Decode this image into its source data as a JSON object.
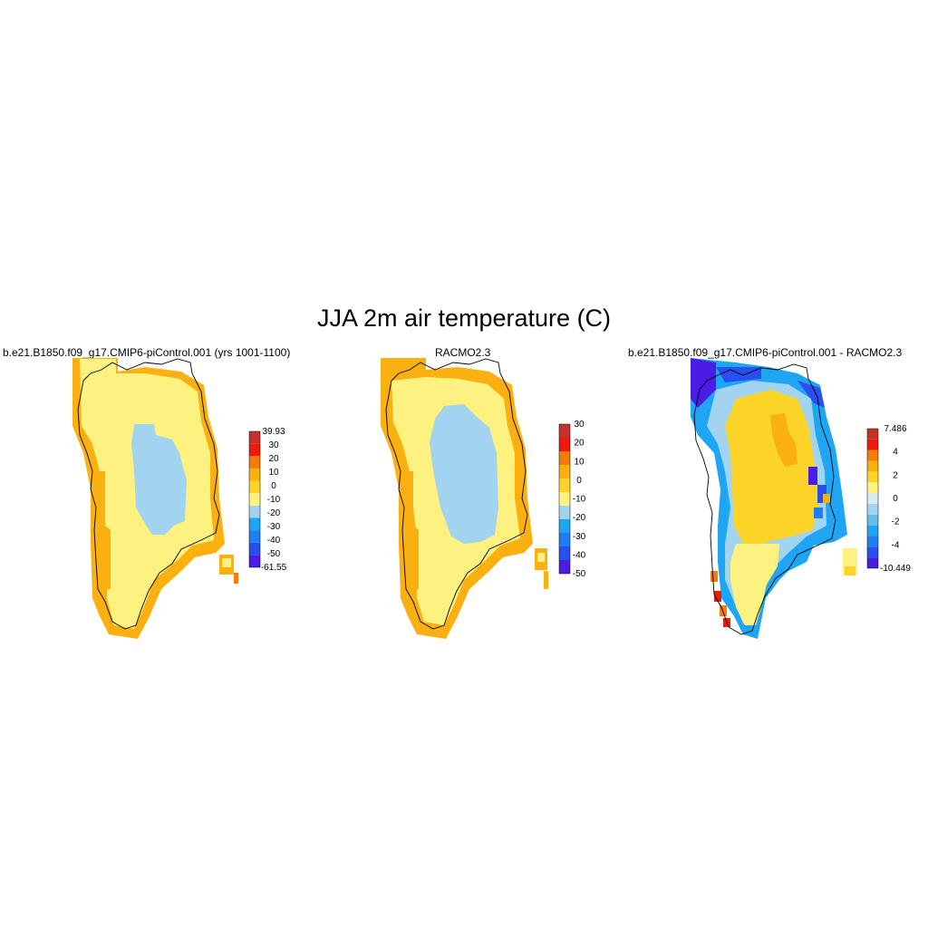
{
  "figure": {
    "title": "JJA 2m air temperature (C)",
    "panels": [
      {
        "title": "b.e21.B1850.f09_g17.CMIP6-piControl.001 (yrs 1001-1100)"
      },
      {
        "title": "RACMO2.3"
      },
      {
        "title": "b.e21.B1850.f09_g17.CMIP6-piControl.001 - RACMO2.3"
      }
    ]
  },
  "colors": {
    "temperature_scale": [
      "#4b1ce6",
      "#2a4ff0",
      "#1f7ef5",
      "#1ea6f5",
      "#a3d4ef",
      "#fdf27f",
      "#fcd427",
      "#fbb012",
      "#f57b0a",
      "#ee1b0d",
      "#c8302e"
    ],
    "difference_scale": [
      "#4b1ce6",
      "#2a4ff0",
      "#1f7ef5",
      "#1ea6f5",
      "#64bfe8",
      "#a3d4ef",
      "#d9ecf3",
      "#fdf27f",
      "#fcd427",
      "#fbb012",
      "#f57b0a",
      "#ee1b0d",
      "#c8302e"
    ]
  },
  "colorbars": [
    {
      "labels": [
        "39.93",
        "30",
        "20",
        "10",
        "0",
        "-10",
        "-20",
        "-30",
        "-40",
        "-50",
        "-61.55"
      ]
    },
    {
      "labels": [
        "30",
        "20",
        "10",
        "0",
        "-10",
        "-20",
        "-30",
        "-40",
        "-50"
      ]
    },
    {
      "labels": [
        "7.486",
        "4",
        "2",
        "0",
        "-2",
        "-4",
        "-10.449"
      ]
    }
  ]
}
